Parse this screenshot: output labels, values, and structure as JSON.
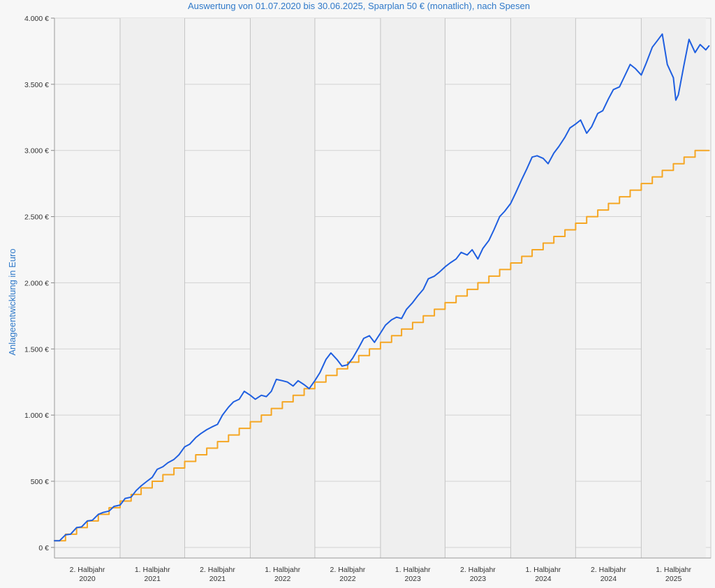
{
  "chart_data": {
    "type": "line",
    "title": "Auswertung von 01.07.2020 bis 30.06.2025, Sparplan 50 € (monatlich), nach Spesen",
    "ylabel": "Anlageentwicklung  in Euro",
    "xlabel": "",
    "ylim": [
      -80,
      4000
    ],
    "xlim": [
      "2020-07-01",
      "2025-07-15"
    ],
    "grid": true,
    "y_ticks": [
      0,
      500,
      1000,
      1500,
      2000,
      2500,
      3000,
      3500,
      4000
    ],
    "y_tick_labels": [
      "0 €",
      "500 €",
      "1.000 €",
      "1.500 €",
      "2.000 €",
      "2.500 €",
      "3.000 €",
      "3.500 €",
      "4.000 €"
    ],
    "x_periods": [
      {
        "label_line1": "2. Halbjahr",
        "label_line2": "2020",
        "start": "2020-07-01",
        "end": "2021-01-01"
      },
      {
        "label_line1": "1. Halbjahr",
        "label_line2": "2021",
        "start": "2021-01-01",
        "end": "2021-07-01"
      },
      {
        "label_line1": "2. Halbjahr",
        "label_line2": "2021",
        "start": "2021-07-01",
        "end": "2022-01-01"
      },
      {
        "label_line1": "1. Halbjahr",
        "label_line2": "2022",
        "start": "2022-01-01",
        "end": "2022-07-01"
      },
      {
        "label_line1": "2. Halbjahr",
        "label_line2": "2022",
        "start": "2022-07-01",
        "end": "2023-01-01"
      },
      {
        "label_line1": "1. Halbjahr",
        "label_line2": "2023",
        "start": "2023-01-01",
        "end": "2023-07-01"
      },
      {
        "label_line1": "2. Halbjahr",
        "label_line2": "2023",
        "start": "2023-07-01",
        "end": "2024-01-01"
      },
      {
        "label_line1": "1. Halbjahr",
        "label_line2": "2024",
        "start": "2024-01-01",
        "end": "2024-07-01"
      },
      {
        "label_line1": "2. Halbjahr",
        "label_line2": "2024",
        "start": "2024-07-01",
        "end": "2025-01-01"
      },
      {
        "label_line1": "1. Halbjahr",
        "label_line2": "2025",
        "start": "2025-01-01",
        "end": "2025-07-01"
      }
    ],
    "series": [
      {
        "color": "#1f5fe0",
        "points": [
          [
            "2020-07-01",
            50
          ],
          [
            "2020-07-15",
            50
          ],
          [
            "2020-08-01",
            95
          ],
          [
            "2020-08-15",
            100
          ],
          [
            "2020-09-01",
            150
          ],
          [
            "2020-09-15",
            155
          ],
          [
            "2020-10-01",
            200
          ],
          [
            "2020-10-15",
            205
          ],
          [
            "2020-11-01",
            250
          ],
          [
            "2020-11-15",
            265
          ],
          [
            "2020-12-01",
            275
          ],
          [
            "2020-12-15",
            310
          ],
          [
            "2021-01-01",
            320
          ],
          [
            "2021-01-15",
            370
          ],
          [
            "2021-02-01",
            380
          ],
          [
            "2021-02-15",
            430
          ],
          [
            "2021-03-01",
            465
          ],
          [
            "2021-03-15",
            495
          ],
          [
            "2021-04-01",
            530
          ],
          [
            "2021-04-15",
            590
          ],
          [
            "2021-05-01",
            610
          ],
          [
            "2021-05-15",
            640
          ],
          [
            "2021-06-01",
            665
          ],
          [
            "2021-06-15",
            700
          ],
          [
            "2021-07-01",
            760
          ],
          [
            "2021-07-15",
            780
          ],
          [
            "2021-08-01",
            830
          ],
          [
            "2021-08-15",
            860
          ],
          [
            "2021-09-01",
            890
          ],
          [
            "2021-09-15",
            910
          ],
          [
            "2021-10-01",
            930
          ],
          [
            "2021-10-15",
            1000
          ],
          [
            "2021-11-01",
            1060
          ],
          [
            "2021-11-15",
            1100
          ],
          [
            "2021-12-01",
            1120
          ],
          [
            "2021-12-15",
            1180
          ],
          [
            "2022-01-01",
            1150
          ],
          [
            "2022-01-15",
            1120
          ],
          [
            "2022-02-01",
            1150
          ],
          [
            "2022-02-15",
            1140
          ],
          [
            "2022-03-01",
            1180
          ],
          [
            "2022-03-15",
            1270
          ],
          [
            "2022-04-01",
            1260
          ],
          [
            "2022-04-15",
            1250
          ],
          [
            "2022-05-01",
            1220
          ],
          [
            "2022-05-15",
            1260
          ],
          [
            "2022-06-01",
            1230
          ],
          [
            "2022-06-15",
            1200
          ],
          [
            "2022-07-01",
            1260
          ],
          [
            "2022-07-15",
            1320
          ],
          [
            "2022-08-01",
            1420
          ],
          [
            "2022-08-15",
            1470
          ],
          [
            "2022-09-01",
            1420
          ],
          [
            "2022-09-15",
            1370
          ],
          [
            "2022-10-01",
            1380
          ],
          [
            "2022-10-15",
            1430
          ],
          [
            "2022-11-01",
            1510
          ],
          [
            "2022-11-15",
            1580
          ],
          [
            "2022-12-01",
            1600
          ],
          [
            "2022-12-15",
            1550
          ],
          [
            "2023-01-01",
            1620
          ],
          [
            "2023-01-15",
            1680
          ],
          [
            "2023-02-01",
            1720
          ],
          [
            "2023-02-15",
            1740
          ],
          [
            "2023-03-01",
            1730
          ],
          [
            "2023-03-15",
            1800
          ],
          [
            "2023-04-01",
            1850
          ],
          [
            "2023-04-15",
            1900
          ],
          [
            "2023-05-01",
            1950
          ],
          [
            "2023-05-15",
            2030
          ],
          [
            "2023-06-01",
            2050
          ],
          [
            "2023-06-15",
            2080
          ],
          [
            "2023-07-01",
            2120
          ],
          [
            "2023-07-15",
            2150
          ],
          [
            "2023-08-01",
            2180
          ],
          [
            "2023-08-15",
            2230
          ],
          [
            "2023-09-01",
            2210
          ],
          [
            "2023-09-15",
            2250
          ],
          [
            "2023-10-01",
            2180
          ],
          [
            "2023-10-15",
            2260
          ],
          [
            "2023-11-01",
            2320
          ],
          [
            "2023-11-15",
            2400
          ],
          [
            "2023-12-01",
            2500
          ],
          [
            "2023-12-15",
            2540
          ],
          [
            "2024-01-01",
            2600
          ],
          [
            "2024-01-15",
            2680
          ],
          [
            "2024-02-01",
            2780
          ],
          [
            "2024-02-15",
            2860
          ],
          [
            "2024-03-01",
            2950
          ],
          [
            "2024-03-15",
            2960
          ],
          [
            "2024-04-01",
            2940
          ],
          [
            "2024-04-15",
            2900
          ],
          [
            "2024-05-01",
            2980
          ],
          [
            "2024-05-15",
            3030
          ],
          [
            "2024-06-01",
            3100
          ],
          [
            "2024-06-15",
            3170
          ],
          [
            "2024-07-01",
            3200
          ],
          [
            "2024-07-15",
            3230
          ],
          [
            "2024-08-01",
            3130
          ],
          [
            "2024-08-15",
            3180
          ],
          [
            "2024-09-01",
            3280
          ],
          [
            "2024-09-15",
            3300
          ],
          [
            "2024-10-01",
            3390
          ],
          [
            "2024-10-15",
            3460
          ],
          [
            "2024-11-01",
            3480
          ],
          [
            "2024-11-15",
            3560
          ],
          [
            "2024-12-01",
            3650
          ],
          [
            "2024-12-15",
            3620
          ],
          [
            "2025-01-01",
            3570
          ],
          [
            "2025-01-15",
            3660
          ],
          [
            "2025-02-01",
            3780
          ],
          [
            "2025-02-15",
            3830
          ],
          [
            "2025-03-01",
            3880
          ],
          [
            "2025-03-15",
            3650
          ],
          [
            "2025-04-01",
            3550
          ],
          [
            "2025-04-08",
            3380
          ],
          [
            "2025-04-15",
            3420
          ],
          [
            "2025-05-01",
            3650
          ],
          [
            "2025-05-15",
            3840
          ],
          [
            "2025-06-01",
            3740
          ],
          [
            "2025-06-15",
            3800
          ],
          [
            "2025-07-01",
            3760
          ],
          [
            "2025-07-10",
            3790
          ]
        ]
      },
      {
        "color": "#f5a623",
        "step": true,
        "points": [
          [
            "2020-07-01",
            50
          ],
          [
            "2020-08-01",
            100
          ],
          [
            "2020-09-01",
            150
          ],
          [
            "2020-10-01",
            200
          ],
          [
            "2020-11-01",
            250
          ],
          [
            "2020-12-01",
            300
          ],
          [
            "2021-01-01",
            350
          ],
          [
            "2021-02-01",
            400
          ],
          [
            "2021-03-01",
            450
          ],
          [
            "2021-04-01",
            500
          ],
          [
            "2021-05-01",
            550
          ],
          [
            "2021-06-01",
            600
          ],
          [
            "2021-07-01",
            650
          ],
          [
            "2021-08-01",
            700
          ],
          [
            "2021-09-01",
            750
          ],
          [
            "2021-10-01",
            800
          ],
          [
            "2021-11-01",
            850
          ],
          [
            "2021-12-01",
            900
          ],
          [
            "2022-01-01",
            950
          ],
          [
            "2022-02-01",
            1000
          ],
          [
            "2022-03-01",
            1050
          ],
          [
            "2022-04-01",
            1100
          ],
          [
            "2022-05-01",
            1150
          ],
          [
            "2022-06-01",
            1200
          ],
          [
            "2022-07-01",
            1250
          ],
          [
            "2022-08-01",
            1300
          ],
          [
            "2022-09-01",
            1350
          ],
          [
            "2022-10-01",
            1400
          ],
          [
            "2022-11-01",
            1450
          ],
          [
            "2022-12-01",
            1500
          ],
          [
            "2023-01-01",
            1550
          ],
          [
            "2023-02-01",
            1600
          ],
          [
            "2023-03-01",
            1650
          ],
          [
            "2023-04-01",
            1700
          ],
          [
            "2023-05-01",
            1750
          ],
          [
            "2023-06-01",
            1800
          ],
          [
            "2023-07-01",
            1850
          ],
          [
            "2023-08-01",
            1900
          ],
          [
            "2023-09-01",
            1950
          ],
          [
            "2023-10-01",
            2000
          ],
          [
            "2023-11-01",
            2050
          ],
          [
            "2023-12-01",
            2100
          ],
          [
            "2024-01-01",
            2150
          ],
          [
            "2024-02-01",
            2200
          ],
          [
            "2024-03-01",
            2250
          ],
          [
            "2024-04-01",
            2300
          ],
          [
            "2024-05-01",
            2350
          ],
          [
            "2024-06-01",
            2400
          ],
          [
            "2024-07-01",
            2450
          ],
          [
            "2024-08-01",
            2500
          ],
          [
            "2024-09-01",
            2550
          ],
          [
            "2024-10-01",
            2600
          ],
          [
            "2024-11-01",
            2650
          ],
          [
            "2024-12-01",
            2700
          ],
          [
            "2025-01-01",
            2750
          ],
          [
            "2025-02-01",
            2800
          ],
          [
            "2025-03-01",
            2850
          ],
          [
            "2025-04-01",
            2900
          ],
          [
            "2025-05-01",
            2950
          ],
          [
            "2025-06-01",
            3000
          ],
          [
            "2025-07-10",
            3000
          ]
        ]
      }
    ]
  }
}
